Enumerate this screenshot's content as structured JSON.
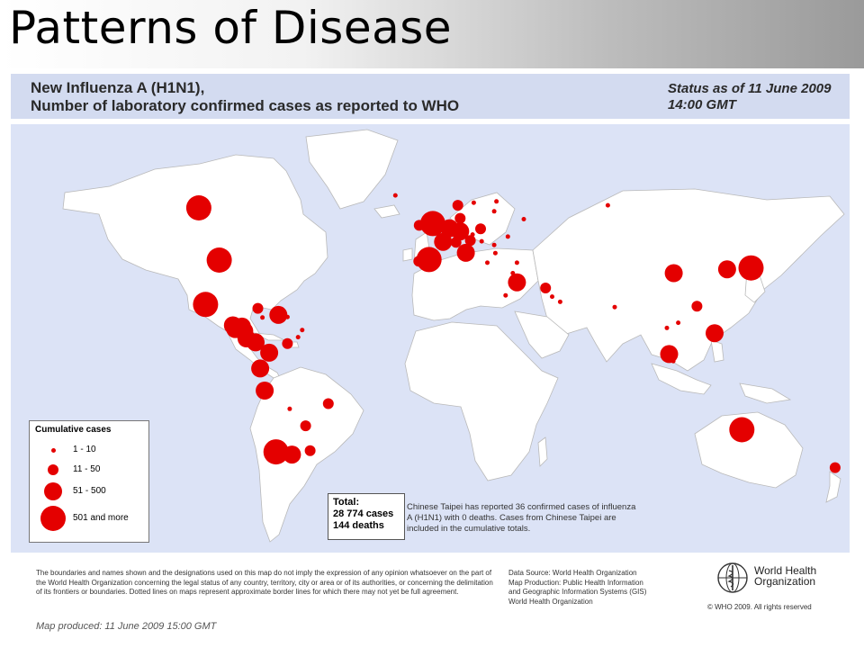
{
  "slide_title": "Patterns of Disease",
  "map": {
    "title_line1": "New Influenza A (H1N1),",
    "title_line2": "Number of  laboratory confirmed cases as reported to WHO",
    "status_line1": "Status as of 11 June 2009",
    "status_line2": "14:00 GMT",
    "marker_color": "#e40000",
    "ocean_color": "#dce3f6",
    "land_color": "#ffffff",
    "markers": [
      {
        "place": "Canada",
        "lon": -105,
        "lat": 60,
        "size_class": 4
      },
      {
        "place": "United States",
        "lon": -96,
        "lat": 40,
        "size_class": 4
      },
      {
        "place": "Mexico",
        "lon": -102,
        "lat": 23,
        "size_class": 4
      },
      {
        "place": "Guatemala",
        "lon": -90,
        "lat": 15,
        "size_class": 3
      },
      {
        "place": "Honduras",
        "lon": -86,
        "lat": 14.5,
        "size_class": 3
      },
      {
        "place": "El Salvador",
        "lon": -89,
        "lat": 13.6,
        "size_class": 3
      },
      {
        "place": "Nicaragua",
        "lon": -85,
        "lat": 12.8,
        "size_class": 3
      },
      {
        "place": "Costa Rica",
        "lon": -84,
        "lat": 10,
        "size_class": 3
      },
      {
        "place": "Panama",
        "lon": -80,
        "lat": 8.5,
        "size_class": 3
      },
      {
        "place": "Cuba",
        "lon": -79,
        "lat": 21.5,
        "size_class": 2
      },
      {
        "place": "Jamaica",
        "lon": -77,
        "lat": 18,
        "size_class": 1
      },
      {
        "place": "Dominican Republic",
        "lon": -70,
        "lat": 19,
        "size_class": 3
      },
      {
        "place": "Puerto Rico",
        "lon": -66,
        "lat": 18.2,
        "size_class": 1
      },
      {
        "place": "Barbados",
        "lon": -59.5,
        "lat": 13.2,
        "size_class": 1
      },
      {
        "place": "Trinidad and Tobago",
        "lon": -61.3,
        "lat": 10.5,
        "size_class": 1
      },
      {
        "place": "Venezuela",
        "lon": -66,
        "lat": 8,
        "size_class": 2
      },
      {
        "place": "Colombia",
        "lon": -74,
        "lat": 4.5,
        "size_class": 3
      },
      {
        "place": "Ecuador",
        "lon": -78,
        "lat": -1.5,
        "size_class": 3
      },
      {
        "place": "Peru",
        "lon": -76,
        "lat": -10,
        "size_class": 3
      },
      {
        "place": "Brazil",
        "lon": -48,
        "lat": -15,
        "size_class": 2
      },
      {
        "place": "Bolivia",
        "lon": -65,
        "lat": -17,
        "size_class": 1
      },
      {
        "place": "Paraguay",
        "lon": -58,
        "lat": -23.5,
        "size_class": 2
      },
      {
        "place": "Chile",
        "lon": -71,
        "lat": -33.5,
        "size_class": 4
      },
      {
        "place": "Argentina",
        "lon": -64,
        "lat": -34.5,
        "size_class": 3
      },
      {
        "place": "Uruguay",
        "lon": -56,
        "lat": -33,
        "size_class": 2
      },
      {
        "place": "Iceland",
        "lon": -18.5,
        "lat": 64.8,
        "size_class": 1
      },
      {
        "place": "United Kingdom",
        "lon": -2,
        "lat": 54,
        "size_class": 4
      },
      {
        "place": "Ireland",
        "lon": -8,
        "lat": 53.3,
        "size_class": 2
      },
      {
        "place": "Norway",
        "lon": 9,
        "lat": 61,
        "size_class": 2
      },
      {
        "place": "Sweden",
        "lon": 16,
        "lat": 62,
        "size_class": 1
      },
      {
        "place": "Finland",
        "lon": 26,
        "lat": 62.5,
        "size_class": 1
      },
      {
        "place": "Denmark",
        "lon": 10,
        "lat": 56,
        "size_class": 2
      },
      {
        "place": "Estonia",
        "lon": 25,
        "lat": 58.7,
        "size_class": 1
      },
      {
        "place": "Netherlands",
        "lon": 5.3,
        "lat": 52.2,
        "size_class": 3
      },
      {
        "place": "Belgium",
        "lon": 4.5,
        "lat": 50.6,
        "size_class": 2
      },
      {
        "place": "Germany",
        "lon": 10,
        "lat": 51,
        "size_class": 3
      },
      {
        "place": "Poland",
        "lon": 19,
        "lat": 52,
        "size_class": 2
      },
      {
        "place": "France",
        "lon": 2.5,
        "lat": 47,
        "size_class": 3
      },
      {
        "place": "Switzerland",
        "lon": 8.2,
        "lat": 46.8,
        "size_class": 2
      },
      {
        "place": "Austria",
        "lon": 14.5,
        "lat": 47.5,
        "size_class": 2
      },
      {
        "place": "Czech Republic",
        "lon": 15.5,
        "lat": 49.8,
        "size_class": 1
      },
      {
        "place": "Hungary",
        "lon": 19.5,
        "lat": 47.2,
        "size_class": 1
      },
      {
        "place": "Russian Federation",
        "lon": 38,
        "lat": 55.7,
        "size_class": 1
      },
      {
        "place": "Ukraine",
        "lon": 31,
        "lat": 49,
        "size_class": 1
      },
      {
        "place": "Romania",
        "lon": 25,
        "lat": 45.8,
        "size_class": 1
      },
      {
        "place": "Bulgaria",
        "lon": 25.5,
        "lat": 42.7,
        "size_class": 1
      },
      {
        "place": "Italy",
        "lon": 12.5,
        "lat": 42.8,
        "size_class": 3
      },
      {
        "place": "Spain",
        "lon": -3.7,
        "lat": 40.2,
        "size_class": 4
      },
      {
        "place": "Portugal",
        "lon": -8.2,
        "lat": 39.6,
        "size_class": 2
      },
      {
        "place": "Greece",
        "lon": 22,
        "lat": 39,
        "size_class": 1
      },
      {
        "place": "Turkey",
        "lon": 35,
        "lat": 39,
        "size_class": 1
      },
      {
        "place": "Cyprus",
        "lon": 33.2,
        "lat": 35,
        "size_class": 1
      },
      {
        "place": "Lebanon",
        "lon": 35.8,
        "lat": 33.9,
        "size_class": 1
      },
      {
        "place": "Israel",
        "lon": 35,
        "lat": 31.5,
        "size_class": 3
      },
      {
        "place": "Egypt",
        "lon": 30,
        "lat": 26.5,
        "size_class": 1
      },
      {
        "place": "Kuwait",
        "lon": 47.6,
        "lat": 29.3,
        "size_class": 2
      },
      {
        "place": "Bahrain",
        "lon": 50.5,
        "lat": 26,
        "size_class": 1
      },
      {
        "place": "United Arab Emirates",
        "lon": 54,
        "lat": 24,
        "size_class": 1
      },
      {
        "place": "Russia (Siberia)",
        "lon": 75,
        "lat": 61,
        "size_class": 1
      },
      {
        "place": "India",
        "lon": 78,
        "lat": 22,
        "size_class": 1
      },
      {
        "place": "China",
        "lon": 104,
        "lat": 35,
        "size_class": 3
      },
      {
        "place": "Korea",
        "lon": 127.5,
        "lat": 36.5,
        "size_class": 3
      },
      {
        "place": "Japan",
        "lon": 138,
        "lat": 37,
        "size_class": 4
      },
      {
        "place": "Viet Nam",
        "lon": 106,
        "lat": 16,
        "size_class": 1
      },
      {
        "place": "Philippines",
        "lon": 122,
        "lat": 12,
        "size_class": 3
      },
      {
        "place": "Thailand",
        "lon": 101,
        "lat": 14,
        "size_class": 1
      },
      {
        "place": "Malaysia",
        "lon": 102,
        "lat": 4,
        "size_class": 3
      },
      {
        "place": "Singapore",
        "lon": 103.8,
        "lat": 1.3,
        "size_class": 1
      },
      {
        "place": "Hong Kong SAR",
        "lon": 114.2,
        "lat": 22.3,
        "size_class": 2
      },
      {
        "place": "Australia",
        "lon": 134,
        "lat": -25,
        "size_class": 4
      },
      {
        "place": "New Zealand",
        "lon": 175,
        "lat": -39.5,
        "size_class": 2
      }
    ]
  },
  "legend": {
    "title": "Cumulative cases",
    "items": [
      {
        "label": "1 - 10",
        "size_class": 1
      },
      {
        "label": "11 - 50",
        "size_class": 2
      },
      {
        "label": "51 - 500",
        "size_class": 3
      },
      {
        "label": "501 and more",
        "size_class": 4
      }
    ]
  },
  "totals": {
    "label": "Total:",
    "cases": "28 774 cases",
    "deaths": "144 deaths"
  },
  "taipei_note": "Chinese Taipei has reported 36 confirmed cases of influenza A (H1N1) with 0 deaths. Cases from Chinese Taipei are included in the cumulative totals.",
  "footer": {
    "disclaimer": "The boundaries and names shown and the designations used on this map do not imply the expression of any opinion whatsoever on the part of the World Health Organization concerning the legal status of any country, territory, city or area or of its authorities, or concerning the delimitation of its frontiers or boundaries. Dotted lines on maps represent approximate border lines for which there may not yet be full agreement.",
    "source_line1": "Data Source: World Health Organization",
    "source_line2": "Map Production: Public Health Information",
    "source_line3": "and Geographic Information Systems (GIS)",
    "source_line4": "World Health Organization",
    "org_name_line1": "World Health",
    "org_name_line2": "Organization",
    "copyright": "© WHO 2009. All rights reserved",
    "produced": "Map produced: 11 June 2009 15:00 GMT"
  }
}
